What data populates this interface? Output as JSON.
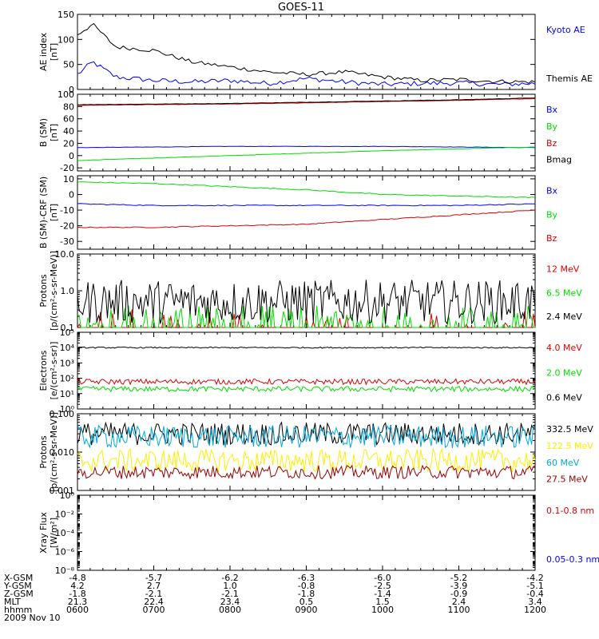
{
  "title": "GOES-11",
  "colors": {
    "black": "#000000",
    "blue": "#0000ff",
    "green": "#00dd00",
    "red": "#dd0000",
    "darkred": "#990000",
    "cyan": "#00aadd",
    "yellow": "#ffee00"
  },
  "chart_data": [
    {
      "type": "line",
      "ylabel": [
        "AE index",
        "[nT]"
      ],
      "ylim": [
        0,
        150
      ],
      "yticks": [
        0,
        50,
        100,
        150
      ],
      "yticklabels": [
        "0",
        "50",
        "100",
        "150"
      ],
      "series": [
        {
          "name": "Kyoto AE",
          "color": "#0000ff",
          "x": [
            0,
            0.2,
            0.5,
            1,
            1.5,
            2,
            2.5,
            3,
            3.5,
            4,
            4.5,
            5,
            5.5,
            6
          ],
          "y": [
            30,
            55,
            25,
            18,
            15,
            18,
            12,
            22,
            15,
            10,
            12,
            13,
            10,
            12
          ]
        },
        {
          "name": "Themis AE",
          "color": "#000000",
          "x": [
            0,
            0.2,
            0.5,
            1,
            1.5,
            2,
            2.5,
            3,
            3.5,
            4,
            4.5,
            5,
            5.5,
            6
          ],
          "y": [
            110,
            130,
            85,
            78,
            55,
            45,
            35,
            30,
            35,
            25,
            18,
            20,
            16,
            15
          ]
        }
      ]
    },
    {
      "type": "line",
      "ylabel": [
        "B (SM)",
        "[nT]"
      ],
      "ylim": [
        -25,
        100
      ],
      "yticks": [
        -20,
        0,
        20,
        40,
        60,
        80,
        100
      ],
      "yticklabels": [
        "-20",
        "0",
        "20",
        "40",
        "60",
        "80",
        "100"
      ],
      "series": [
        {
          "name": "Bx",
          "color": "#0000ff",
          "x": [
            0,
            1,
            2,
            3,
            4,
            5,
            6
          ],
          "y": [
            13,
            14,
            15,
            15,
            15,
            14,
            13
          ]
        },
        {
          "name": "By",
          "color": "#00dd00",
          "x": [
            0,
            1,
            2,
            3,
            4,
            5,
            6
          ],
          "y": [
            -8,
            -4,
            0,
            4,
            8,
            11,
            14
          ]
        },
        {
          "name": "Bz",
          "color": "#dd0000",
          "x": [
            0,
            1,
            2,
            3,
            4,
            5,
            6
          ],
          "y": [
            82,
            83,
            84,
            86,
            88,
            90,
            93
          ]
        },
        {
          "name": "Bmag",
          "color": "#000000",
          "x": [
            0,
            1,
            2,
            3,
            4,
            5,
            6
          ],
          "y": [
            83,
            84,
            85,
            87,
            89,
            91,
            94
          ]
        }
      ]
    },
    {
      "type": "line",
      "ylabel": [
        "B (SM)-CRF (SM)",
        "[nT]"
      ],
      "ylim": [
        -35,
        12
      ],
      "yticks": [
        -30,
        -20,
        -10,
        0,
        10
      ],
      "yticklabels": [
        "-30",
        "-20",
        "-10",
        "0",
        "10"
      ],
      "series": [
        {
          "name": "Bx",
          "color": "#0000ff",
          "x": [
            0,
            1,
            2,
            3,
            4,
            5,
            6
          ],
          "y": [
            -6,
            -7,
            -7,
            -7,
            -7,
            -7,
            -6
          ]
        },
        {
          "name": "By",
          "color": "#00dd00",
          "x": [
            0,
            1,
            2,
            3,
            4,
            5,
            6
          ],
          "y": [
            8,
            7,
            5,
            3,
            0,
            -1,
            -2
          ]
        },
        {
          "name": "Bz",
          "color": "#dd0000",
          "x": [
            0,
            1,
            2,
            3,
            4,
            5,
            6
          ],
          "y": [
            -21,
            -21,
            -20,
            -19,
            -16,
            -13,
            -10
          ]
        }
      ]
    },
    {
      "type": "line",
      "ylabel": [
        "Protons",
        "[p/(cm²-s-sr-MeV)]"
      ],
      "ylim": [
        0.1,
        10
      ],
      "yscale": "log",
      "yticks": [
        0.1,
        1,
        10
      ],
      "yticklabels": [
        "0.1",
        "1.0",
        "10.0"
      ],
      "series": [
        {
          "name": "12 MeV",
          "color": "#dd0000",
          "x": [
            0,
            6
          ],
          "y": [
            0.1,
            0.1
          ]
        },
        {
          "name": "6.5 MeV",
          "color": "#00dd00",
          "x": [
            0,
            6
          ],
          "y": [
            0.18,
            0.18
          ]
        },
        {
          "name": "2.4 MeV",
          "color": "#000000",
          "x": [
            0,
            6
          ],
          "y": [
            0.8,
            0.8
          ]
        }
      ]
    },
    {
      "type": "line",
      "ylabel": [
        "Electrons",
        "[e/(cm²-s-sr)]"
      ],
      "ylim": [
        1,
        100000
      ],
      "yscale": "log",
      "yticks": [
        1,
        10,
        100,
        1000,
        10000,
        100000
      ],
      "yticklabels": [
        "10⁰",
        "10¹",
        "10²",
        "10³",
        "10⁴",
        "10⁵"
      ],
      "series": [
        {
          "name": "4.0 MeV",
          "color": "#dd0000",
          "x": [
            0,
            6
          ],
          "y": [
            60,
            60
          ]
        },
        {
          "name": "2.0 MeV",
          "color": "#00dd00",
          "x": [
            0,
            6
          ],
          "y": [
            20,
            20
          ]
        },
        {
          "name": "0.6 MeV",
          "color": "#000000",
          "x": [
            0,
            6
          ],
          "y": [
            10000,
            10000
          ]
        }
      ]
    },
    {
      "type": "line",
      "ylabel": [
        "Protons",
        "[p/(cm²-s-sr-MeV)]"
      ],
      "ylim": [
        0.001,
        0.1
      ],
      "yscale": "log",
      "yticks": [
        0.001,
        0.01,
        0.1
      ],
      "yticklabels": [
        "0.001",
        "0.010",
        "0.100"
      ],
      "series": [
        {
          "name": "332.5 MeV",
          "color": "#000000",
          "x": [
            0,
            6
          ],
          "y": [
            0.03,
            0.03
          ]
        },
        {
          "name": "122.5 MeV",
          "color": "#ffee00",
          "x": [
            0,
            6
          ],
          "y": [
            0.006,
            0.006
          ]
        },
        {
          "name": "60 MeV",
          "color": "#00aadd",
          "x": [
            0,
            6
          ],
          "y": [
            0.025,
            0.025
          ]
        },
        {
          "name": "27.5 MeV",
          "color": "#990000",
          "x": [
            0,
            6
          ],
          "y": [
            0.003,
            0.003
          ]
        }
      ]
    },
    {
      "type": "line",
      "ylabel": [
        "Xray Flux",
        "[W/m²]"
      ],
      "ylim": [
        1e-08,
        1
      ],
      "yscale": "log",
      "yticks": [
        1e-08,
        1e-06,
        0.0001,
        0.01,
        1
      ],
      "yticklabels": [
        "10⁻⁸",
        "10⁻⁶",
        "10⁻⁴",
        "10⁻²",
        "10⁰"
      ],
      "series": [
        {
          "name": "0.1-0.8 nm",
          "color": "#dd0000",
          "x": [],
          "y": []
        },
        {
          "name": "0.05-0.3 nm",
          "color": "#0000ff",
          "x": [],
          "y": []
        }
      ]
    }
  ],
  "xaxis": {
    "rows": [
      {
        "label": "X-GSM",
        "values": [
          "-4.8",
          "-5.7",
          "-6.2",
          "-6.3",
          "-6.0",
          "-5.2",
          "-4.2"
        ]
      },
      {
        "label": "Y-GSM",
        "values": [
          "4.2",
          "2.7",
          "1.0",
          "-0.8",
          "-2.5",
          "-3.9",
          "-5.1"
        ]
      },
      {
        "label": "Z-GSM",
        "values": [
          "-1.8",
          "-2.1",
          "-2.1",
          "-1.8",
          "-1.4",
          "-0.9",
          "-0.4"
        ]
      },
      {
        "label": "MLT",
        "values": [
          "21.3",
          "22.4",
          "23.4",
          "0.5",
          "1.5",
          "2.4",
          "3.4"
        ]
      },
      {
        "label": "hhmm",
        "values": [
          "0600",
          "0700",
          "0800",
          "0900",
          "1000",
          "1100",
          "1200"
        ]
      }
    ],
    "date": "2009 Nov 10"
  }
}
